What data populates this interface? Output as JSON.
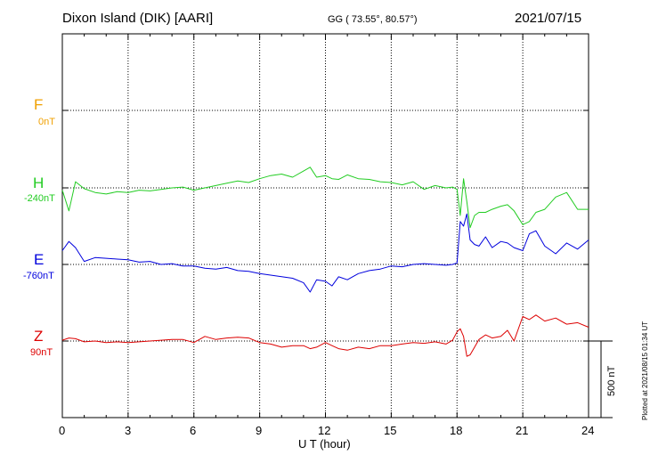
{
  "header": {
    "station": "Dixon Island (DIK)  [AARI]",
    "coords": "GG ( 73.55°,  80.57°)",
    "date": "2021/07/15"
  },
  "footer": {
    "plotted": "Plotted at 2021/08/15 01:34 UT"
  },
  "components": [
    {
      "letter": "F",
      "baseline": "0nT",
      "color": "#f0a000"
    },
    {
      "letter": "H",
      "baseline": "-240nT",
      "color": "#22cc22"
    },
    {
      "letter": "E",
      "baseline": "-760nT",
      "color": "#0000dd"
    },
    {
      "letter": "Z",
      "baseline": "90nT",
      "color": "#dd0000"
    }
  ],
  "chart_data": {
    "type": "line",
    "title": "Dixon Island (DIK)  [AARI]",
    "xlabel": "U T (hour)",
    "xlim": [
      0,
      24
    ],
    "xticks": [
      "0",
      "3",
      "6",
      "9",
      "12",
      "15",
      "18",
      "21",
      "24"
    ],
    "scale_bar": "500 nT",
    "grid": true,
    "series": [
      {
        "name": "H",
        "baseline": "-240nT",
        "color": "#22cc22",
        "x": [
          0,
          0.3,
          0.6,
          1,
          1.5,
          2,
          2.5,
          3,
          3.5,
          4,
          4.5,
          5,
          5.5,
          6,
          6.5,
          7,
          7.5,
          8,
          8.5,
          9,
          9.5,
          10,
          10.5,
          11,
          11.3,
          11.6,
          12,
          12.3,
          12.6,
          13,
          13.5,
          14,
          14.5,
          15,
          15.5,
          16,
          16.5,
          17,
          17.5,
          17.8,
          18,
          18.15,
          18.3,
          18.45,
          18.6,
          18.8,
          19,
          19.3,
          19.6,
          20,
          20.3,
          20.6,
          21,
          21.3,
          21.6,
          22,
          22.5,
          23,
          23.5,
          24
        ],
        "values": [
          -15,
          -150,
          40,
          -5,
          -30,
          -40,
          -25,
          -30,
          -15,
          -20,
          -10,
          0,
          5,
          -15,
          0,
          15,
          30,
          45,
          35,
          60,
          80,
          90,
          70,
          110,
          135,
          70,
          80,
          60,
          55,
          85,
          60,
          55,
          40,
          35,
          20,
          40,
          -10,
          15,
          0,
          5,
          -10,
          -180,
          60,
          -90,
          -260,
          -180,
          -160,
          -160,
          -140,
          -120,
          -110,
          -150,
          -240,
          -220,
          -160,
          -140,
          -60,
          -30,
          -140,
          -140
        ]
      },
      {
        "name": "E",
        "baseline": "-760nT",
        "color": "#0000dd",
        "x": [
          0,
          0.3,
          0.6,
          1,
          1.5,
          2,
          2.5,
          3,
          3.5,
          4,
          4.5,
          5,
          5.5,
          6,
          6.5,
          7,
          7.5,
          8,
          8.5,
          9,
          9.5,
          10,
          10.5,
          11,
          11.3,
          11.6,
          12,
          12.3,
          12.6,
          13,
          13.5,
          14,
          14.5,
          15,
          15.5,
          16,
          16.5,
          17,
          17.5,
          17.8,
          18,
          18.15,
          18.3,
          18.45,
          18.6,
          18.8,
          19,
          19.3,
          19.6,
          20,
          20.3,
          20.6,
          21,
          21.3,
          21.6,
          22,
          22.5,
          23,
          23.5,
          24
        ],
        "values": [
          90,
          150,
          110,
          20,
          45,
          40,
          35,
          30,
          15,
          20,
          0,
          5,
          -10,
          -10,
          -25,
          -30,
          -20,
          -40,
          -45,
          -60,
          -70,
          -80,
          -90,
          -120,
          -180,
          -100,
          -110,
          -140,
          -80,
          -100,
          -60,
          -40,
          -30,
          -10,
          -15,
          0,
          5,
          0,
          -5,
          0,
          10,
          280,
          250,
          330,
          160,
          130,
          120,
          180,
          110,
          150,
          140,
          110,
          90,
          200,
          220,
          120,
          70,
          140,
          100,
          160
        ]
      },
      {
        "name": "Z",
        "baseline": "90nT",
        "color": "#dd0000",
        "x": [
          0,
          0.3,
          0.6,
          1,
          1.5,
          2,
          2.5,
          3,
          3.5,
          4,
          4.5,
          5,
          5.5,
          6,
          6.5,
          7,
          7.5,
          8,
          8.5,
          9,
          9.5,
          10,
          10.5,
          11,
          11.3,
          11.6,
          12,
          12.3,
          12.6,
          13,
          13.5,
          14,
          14.5,
          15,
          15.5,
          16,
          16.5,
          17,
          17.5,
          17.8,
          18,
          18.15,
          18.3,
          18.45,
          18.6,
          18.8,
          19,
          19.3,
          19.6,
          20,
          20.3,
          20.6,
          21,
          21.3,
          21.6,
          22,
          22.5,
          23,
          23.5,
          24
        ],
        "values": [
          5,
          20,
          15,
          -5,
          0,
          -10,
          -5,
          -10,
          -5,
          0,
          5,
          10,
          10,
          -10,
          30,
          10,
          20,
          25,
          20,
          -10,
          -20,
          -40,
          -30,
          -30,
          -50,
          -40,
          -10,
          -30,
          -50,
          -60,
          -40,
          -50,
          -30,
          -30,
          -20,
          -10,
          -15,
          -5,
          -20,
          5,
          60,
          80,
          30,
          -100,
          -90,
          -40,
          10,
          40,
          20,
          30,
          70,
          0,
          160,
          140,
          170,
          130,
          150,
          110,
          120,
          90
        ]
      }
    ]
  }
}
